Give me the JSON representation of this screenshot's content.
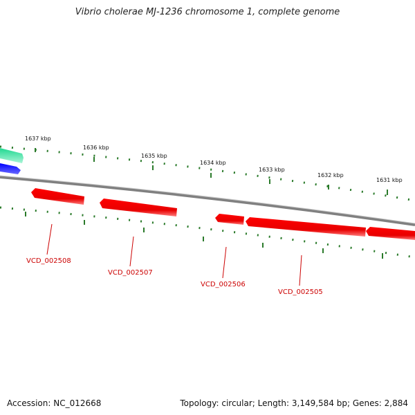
{
  "title": "Vibrio cholerae MJ-1236 chromosome 1, complete genome",
  "ticks": [
    {
      "label": "1637 kbp"
    },
    {
      "label": "1636 kbp"
    },
    {
      "label": "1635 kbp"
    },
    {
      "label": "1634 kbp"
    },
    {
      "label": "1633 kbp"
    },
    {
      "label": "1632 kbp"
    },
    {
      "label": "1631 kbp"
    }
  ],
  "genes": [
    {
      "name": "VCD_002508"
    },
    {
      "name": "VCD_002507"
    },
    {
      "name": "VCD_002506"
    },
    {
      "name": "VCD_002505"
    }
  ],
  "colors": {
    "gene_red": "#ff0000",
    "gene_teal": "#33e6a0",
    "gene_blue": "#0000ee",
    "ticks_green": "#2a7a2a",
    "backbone": "#888888",
    "label_red": "#cc0000"
  },
  "footer": {
    "accession": "Accession: NC_012668",
    "summary": "Topology: circular; Length: 3,149,584 bp; Genes: 2,884"
  }
}
